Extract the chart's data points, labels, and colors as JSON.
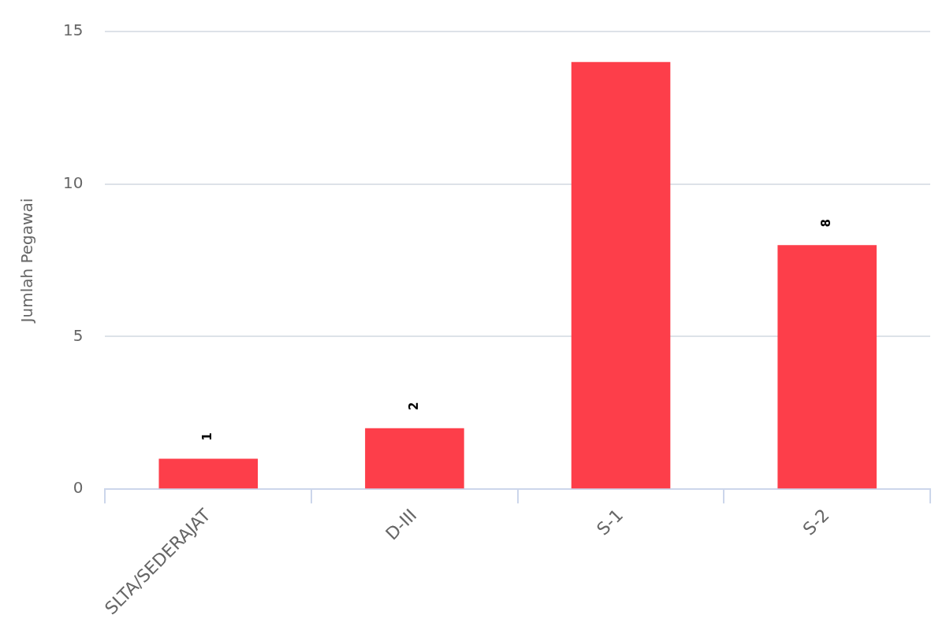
{
  "chart_data": {
    "type": "bar",
    "ylabel": "Jumlah Pegawai",
    "categories": [
      "SLTA/SEDERAJAT",
      "D-III",
      "S-1",
      "S-2"
    ],
    "values": [
      1,
      2,
      14,
      8
    ],
    "value_labels": [
      "1",
      "2",
      null,
      "8"
    ],
    "color": "#fd3e4a",
    "ylim": [
      0,
      15
    ],
    "yticks": [
      0,
      5,
      10,
      15
    ],
    "grid": "y",
    "legend": false
  }
}
